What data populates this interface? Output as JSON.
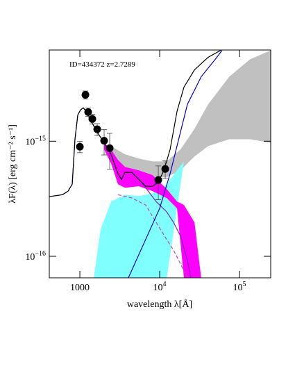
{
  "chart_data": {
    "type": "scatter",
    "annotation": "ID=434372 z=2.7289",
    "xlabel": "wavelength λ[Å]",
    "ylabel": "λF(λ) [erg cm⁻² s⁻¹]",
    "xscale": "log",
    "yscale": "log",
    "xlim": [
      414,
      246000
    ],
    "ylim": [
      6.5e-17,
      6.2e-15
    ],
    "xticks": [
      1000,
      {
        "value": 10000,
        "label": "10",
        "exponent": "4"
      },
      {
        "value": 100000,
        "label": "10",
        "exponent": "5"
      }
    ],
    "yticks": [
      {
        "value": 1e-16,
        "label": "10",
        "exponent": "−16"
      },
      {
        "value": 1e-15,
        "label": "10",
        "exponent": "−15"
      }
    ],
    "bands": [
      {
        "color": "#c0c0c0",
        "x": [
          2461,
          3673,
          5474,
          8166,
          12250,
          18220,
          27320,
          40450,
          74300,
          135000,
          246000
        ],
        "lower": [
          7.37e-16,
          5.58e-16,
          5.21e-16,
          4.86e-16,
          4.86e-16,
          5.58e-16,
          7.37e-16,
          9.07e-16,
          1.04e-15,
          1.04e-15,
          9.7e-16
        ],
        "upper": [
          9.07e-16,
          7.7e-16,
          7.07e-16,
          6.68e-16,
          6.68e-16,
          8.47e-16,
          1.28e-15,
          2.09e-15,
          3.63e-15,
          5.14e-15,
          6.15e-15
        ]
      },
      {
        "color": "#80ffff",
        "x": [
          1493,
          1823,
          2461,
          3673,
          5474,
          8166,
          12250,
          16500,
          20140
        ],
        "lower": [
          6.5e-17,
          6.5e-17,
          6.5e-17,
          6.5e-17,
          6.5e-17,
          6.5e-17,
          6.5e-17,
          2.61e-16,
          6.68e-16
        ],
        "upper": [
          6.5e-17,
          1.72e-16,
          2.99e-16,
          3.43e-16,
          3.34e-16,
          3.53e-16,
          4.23e-16,
          5.58e-16,
          6.68e-16
        ]
      },
      {
        "color": "#ff00ff",
        "x": [
          2014,
          2461,
          3006,
          3673,
          5474,
          8166,
          12250,
          16500,
          20140,
          27320,
          33100
        ],
        "lower": [
          8.47e-16,
          6.41e-16,
          4.23e-16,
          3.94e-16,
          4.06e-16,
          3.68e-16,
          3.21e-16,
          2.61e-16,
          6.5e-17,
          6.5e-17,
          6.5e-17
        ],
        "upper": [
          9.7e-16,
          8.47e-16,
          6.87e-16,
          5.98e-16,
          5.58e-16,
          5.07e-16,
          3.84e-16,
          2.99e-16,
          2.79e-16,
          1.97e-16,
          6.5e-17
        ]
      }
    ],
    "series": [
      {
        "color": "#c040c0",
        "dash": true,
        "x": [
          3006,
          4482,
          6687,
          9030,
          12250,
          14920,
          18220,
          22250
        ],
        "values": [
          3.43e-16,
          3.21e-16,
          2.79e-16,
          1.97e-16,
          1.4e-16,
          1.13e-16,
          8.6e-17,
          6.5e-17
        ]
      },
      {
        "color": "#8020c0",
        "x": [
          414,
          606,
          711,
          802,
          869,
          942,
          1020,
          1105,
          1197,
          1350,
          1650,
          2014,
          2461,
          3006,
          3320,
          3673,
          4482,
          5474,
          6687,
          9030,
          12250,
          14920,
          18220,
          22250,
          24600
        ],
        "values": [
          3.3e-16,
          3.43e-16,
          3.68e-16,
          4.23e-16,
          1.04e-15,
          1.69e-15,
          1.87e-15,
          1.95e-15,
          1.82e-15,
          1.54e-15,
          1.2e-15,
          9.7e-16,
          7.7e-16,
          5.21e-16,
          4.66e-16,
          5.36e-16,
          5.36e-16,
          4.66e-16,
          3.94e-16,
          2.99e-16,
          2.43e-16,
          1.97e-16,
          1.5e-16,
          9.2e-17,
          6.5e-17
        ]
      },
      {
        "color": "#0000cc",
        "x": [
          4053,
          10000,
          13500,
          18220,
          22250,
          33100,
          49600,
          60400
        ],
        "values": [
          6.5e-17,
          2.61e-16,
          5.21e-16,
          1.2e-15,
          2.09e-15,
          3.63e-15,
          5.14e-15,
          6.15e-15
        ]
      },
      {
        "color": "#000000",
        "x": [
          414,
          606,
          711,
          802,
          869,
          942,
          1020,
          1105,
          1197,
          1350,
          1650,
          2014,
          2461,
          3006,
          3320,
          3673,
          4482,
          5474,
          6687,
          8166,
          9610,
          11300,
          13500,
          16500,
          20140,
          27320,
          40450,
          58000
        ],
        "values": [
          3.3e-16,
          3.43e-16,
          3.68e-16,
          4.23e-16,
          1.04e-15,
          1.69e-15,
          1.87e-15,
          1.95e-15,
          1.82e-15,
          1.54e-15,
          1.2e-15,
          9.7e-16,
          7.7e-16,
          5.21e-16,
          4.66e-16,
          5.36e-16,
          5.36e-16,
          4.66e-16,
          4.06e-16,
          4.06e-16,
          4.42e-16,
          5.58e-16,
          8.47e-16,
          1.82e-15,
          2.95e-15,
          4.17e-15,
          5.36e-15,
          6.15e-15
        ]
      }
    ],
    "points": {
      "color": "#000000",
      "x": [
        1000,
        1174,
        1271,
        1434,
        1650,
        2014,
        2365,
        9610,
        11740
      ],
      "values": [
        8.95e-16,
        2.53e-15,
        1.79e-15,
        1.56e-15,
        1.27e-15,
        1.01e-15,
        8.7e-16,
        4.6e-16,
        5.74e-16
      ],
      "errors": [
        1e-16,
        2e-16,
        1.5e-16,
        1.5e-16,
        1.5e-16,
        2.5e-16,
        3e-16,
        1.5e-16,
        1e-16
      ]
    }
  }
}
